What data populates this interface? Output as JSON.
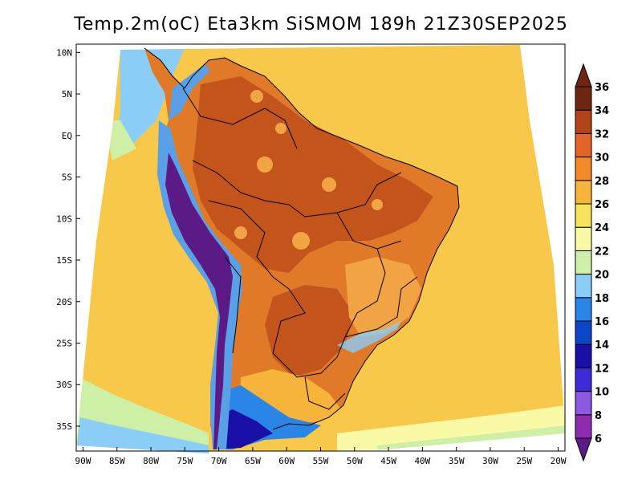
{
  "title": "Temp.2m(oC) Eta3km SiSMOM 189h 21Z30SEP2025",
  "map": {
    "lon_range": [
      -91,
      -19
    ],
    "lat_range": [
      -38,
      11
    ],
    "lon_ticks": [
      "90W",
      "85W",
      "80W",
      "75W",
      "70W",
      "65W",
      "60W",
      "55W",
      "50W",
      "45W",
      "40W",
      "35W",
      "30W",
      "25W",
      "20W"
    ],
    "lat_ticks": [
      "10N",
      "5N",
      "EQ",
      "5S",
      "10S",
      "15S",
      "20S",
      "25S",
      "30S",
      "35S"
    ],
    "background_color": "#f7c84a",
    "land_color": "#e07a28",
    "hot_core_color": "#c2541c",
    "andes_color": "#5aa0e6",
    "south_cold_color": "#3a6ee0"
  },
  "colorbar": {
    "labels": [
      "6",
      "8",
      "10",
      "12",
      "14",
      "16",
      "18",
      "20",
      "22",
      "24",
      "26",
      "28",
      "30",
      "32",
      "34",
      "36"
    ],
    "colors": [
      "#5b1a86",
      "#8e2bb1",
      "#8c5ae2",
      "#3c2bd6",
      "#1a0fa6",
      "#0a46c6",
      "#2a86e6",
      "#8acdf7",
      "#ceefa6",
      "#fafaa6",
      "#f7e45a",
      "#f7b43a",
      "#f28a2a",
      "#e2642a",
      "#b2441a",
      "#6e2612"
    ]
  }
}
